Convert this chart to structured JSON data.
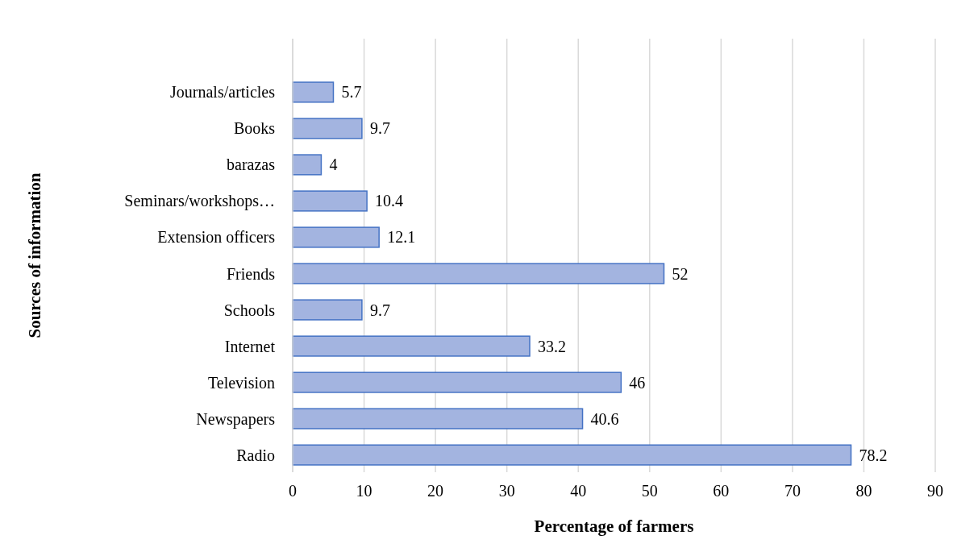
{
  "chart_data": {
    "type": "bar",
    "orientation": "horizontal",
    "xlabel": "Percentage of farmers",
    "ylabel": "Sources of information",
    "categories": [
      "Journals/articles",
      "Books",
      "barazas",
      "Seminars/workshops…",
      "Extension officers",
      "Friends",
      "Schools",
      "Internet",
      "Television",
      "Newspapers",
      "Radio"
    ],
    "values": [
      5.7,
      9.7,
      4,
      10.4,
      12.1,
      52,
      9.7,
      33.2,
      46,
      40.6,
      78.2
    ],
    "color": "#a3b4e0",
    "xlim": [
      0,
      90
    ],
    "xticks": [
      0,
      10,
      20,
      30,
      40,
      50,
      60,
      70,
      80,
      90
    ],
    "grid": "x",
    "data_labels": true
  }
}
